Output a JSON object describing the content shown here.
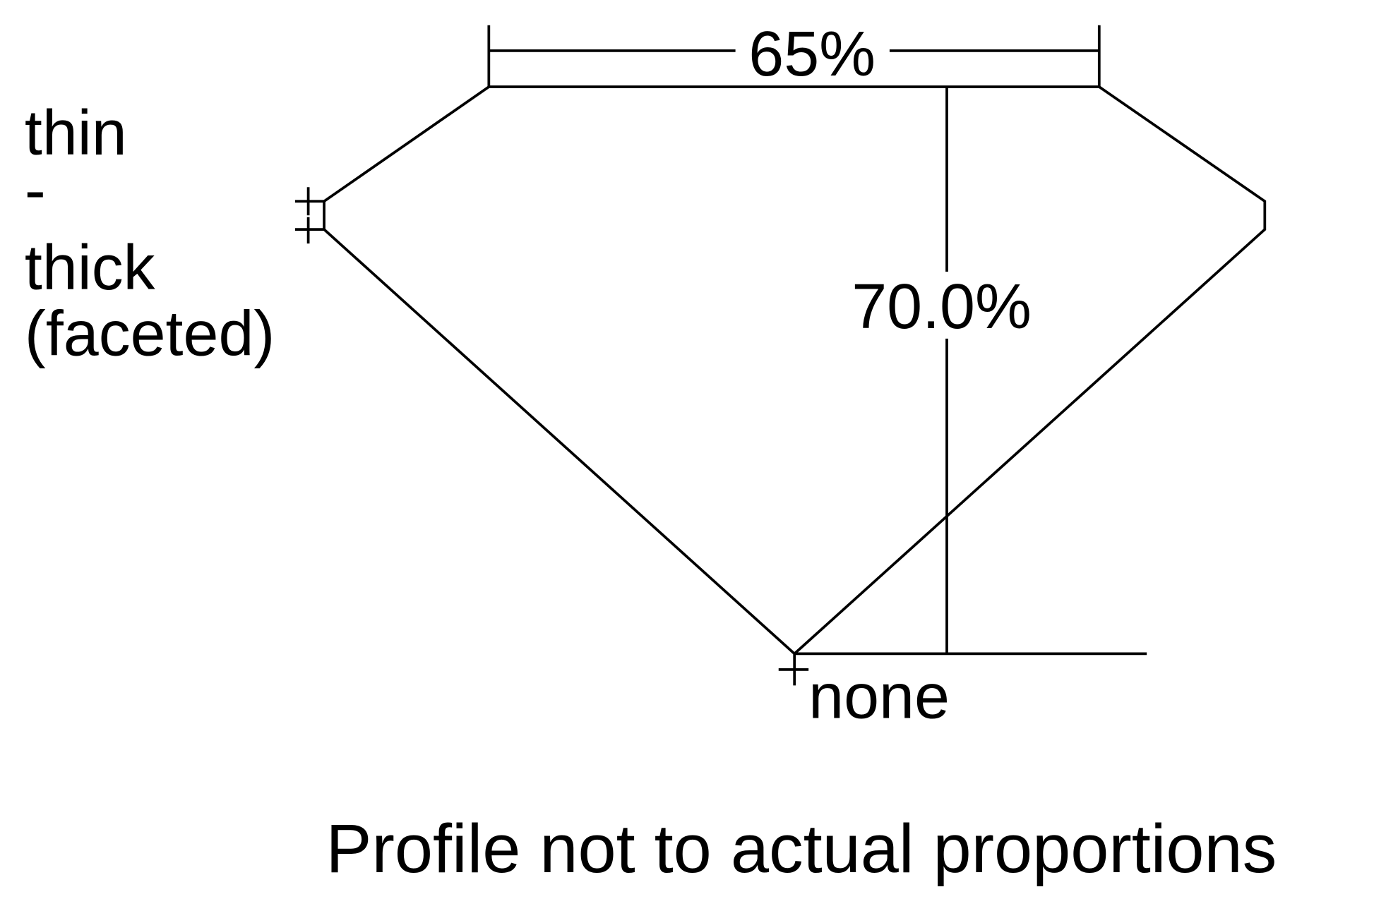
{
  "diagram": {
    "table_percentage": "65%",
    "depth_percentage": "70.0%",
    "girdle_label_lines": [
      "thin",
      "-",
      "thick",
      "(faceted)"
    ],
    "culet_label": "none",
    "footnote": "Profile not to actual proportions",
    "line_color": "#000000",
    "background_color": "#ffffff"
  }
}
